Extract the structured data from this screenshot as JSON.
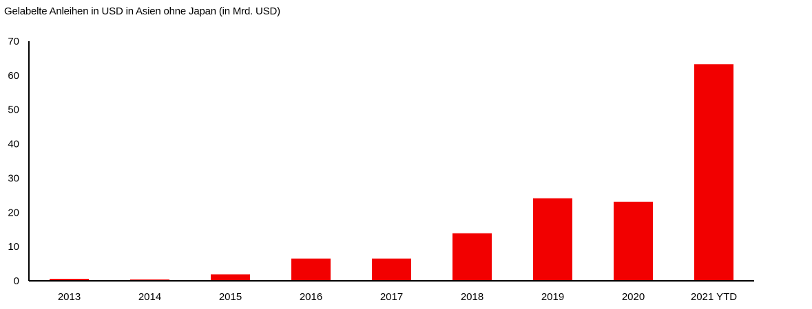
{
  "chart_data": {
    "type": "bar",
    "title": "Gelabelte Anleihen in USD in Asien ohne Japan (in Mrd. USD)",
    "xlabel": "",
    "ylabel": "",
    "categories": [
      "2013",
      "2014",
      "2015",
      "2016",
      "2017",
      "2018",
      "2019",
      "2020",
      "2021 YTD"
    ],
    "values": [
      0.6,
      0.4,
      1.9,
      6.5,
      6.5,
      13.9,
      24.1,
      23.1,
      63.3
    ],
    "ylim": [
      0,
      70
    ],
    "yticks": [
      "0",
      "10",
      "20",
      "30",
      "40",
      "50",
      "60",
      "70"
    ],
    "grid": false,
    "legend": "none",
    "bar_color": "#f20000"
  }
}
